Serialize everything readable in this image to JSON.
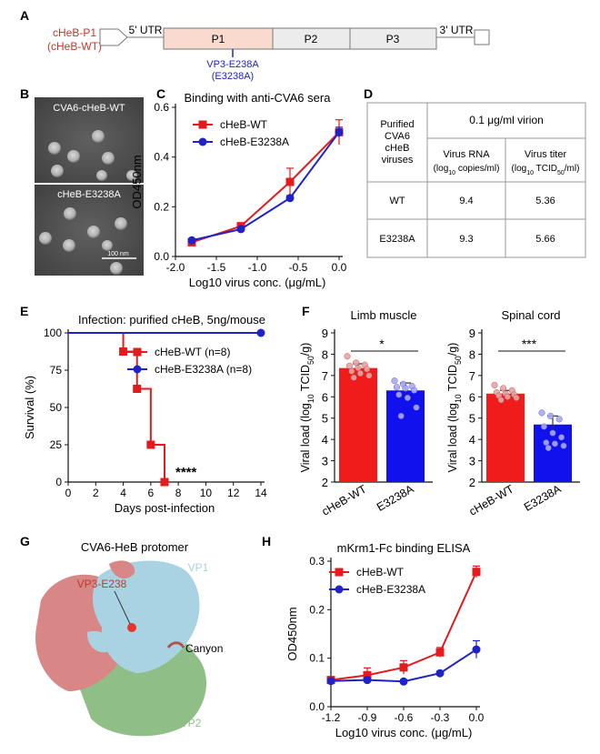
{
  "panels": {
    "A": {
      "letter": "A",
      "construct_line1": "cHeB-P1",
      "construct_line2": "(cHeB-WT)",
      "utr5": "5' UTR",
      "utr3": "3' UTR",
      "regions": [
        "P1",
        "P2",
        "P3"
      ],
      "mutation_line1": "VP3-E238A",
      "mutation_line2": "(E3238A)"
    },
    "B": {
      "letter": "B",
      "top_label": "CVA6-cHeB-WT",
      "bottom_label": "cHeB-E3238A",
      "scale_bar": "100 nm"
    },
    "C": {
      "letter": "C"
    },
    "D": {
      "letter": "D",
      "row_header_lines": [
        "Purified",
        "CVA6",
        "cHeB",
        "viruses"
      ],
      "span_header": "0.1 μg/ml virion",
      "col1_line1": "Virus RNA",
      "col1_line2": "(log10 copies/ml)",
      "col2_line1": "Virus titer",
      "col2_line2": "(log10 TCID50/ml)",
      "rows": [
        {
          "name": "WT",
          "rna": "9.4",
          "titer": "5.36"
        },
        {
          "name": "E3238A",
          "rna": "9.3",
          "titer": "5.66"
        }
      ]
    },
    "E": {
      "letter": "E",
      "stars": "****"
    },
    "F": {
      "letter": "F"
    },
    "G": {
      "letter": "G",
      "title": "CVA6-HeB protomer",
      "labels": {
        "vp1": "VP1",
        "vp2": "VP2",
        "vp3": "VP3",
        "mutation": "VP3-E238",
        "canyon": "Canyon"
      },
      "colors": {
        "vp1": "#a9d3e3",
        "vp2": "#8fbf86",
        "vp3": "#d98686",
        "mutation": "#e8352b"
      }
    },
    "H": {
      "letter": "H"
    }
  },
  "chart_data": [
    {
      "id": "C",
      "type": "line",
      "title": "Binding with anti-CVA6 sera",
      "xlabel": "Log10 virus conc. (μg/mL)",
      "ylabel": "OD450nm",
      "xlim": [
        -2.0,
        0.0
      ],
      "ylim": [
        0.0,
        0.6
      ],
      "xticks": [
        -2.0,
        -1.5,
        -1.0,
        -0.5,
        0.0
      ],
      "yticks": [
        0.0,
        0.2,
        0.4,
        0.6
      ],
      "legend": "top-left",
      "series": [
        {
          "name": "cHeB-WT",
          "color": "#e41a1c",
          "marker": "square",
          "x": [
            -1.8,
            -1.2,
            -0.6,
            0.0
          ],
          "y": [
            0.057,
            0.122,
            0.3,
            0.5
          ],
          "err": [
            0.006,
            0.008,
            0.055,
            0.05
          ]
        },
        {
          "name": "cHeB-E3238A",
          "color": "#1f22c9",
          "marker": "circle",
          "x": [
            -1.8,
            -1.2,
            -0.6,
            0.0
          ],
          "y": [
            0.065,
            0.11,
            0.235,
            0.5
          ],
          "err": [
            0.005,
            0.006,
            0.01,
            0.02
          ]
        }
      ]
    },
    {
      "id": "E",
      "type": "line",
      "title": "Infection: purified cHeB, 5ng/mouse",
      "xlabel": "Days post-infection",
      "ylabel": "Survival (%)",
      "xlim": [
        0,
        14
      ],
      "ylim": [
        0,
        100
      ],
      "xticks": [
        0,
        2,
        4,
        6,
        8,
        10,
        12,
        14
      ],
      "yticks": [
        0,
        25,
        50,
        75,
        100
      ],
      "legend": "center-right",
      "series": [
        {
          "name": "cHeB-WT (n=8)",
          "color": "#e41a1c",
          "marker": "square",
          "step": true,
          "x": [
            0,
            4,
            5,
            6,
            7
          ],
          "y": [
            100,
            87.5,
            62.5,
            25,
            0
          ]
        },
        {
          "name": "cHeB-E3238A (n=8)",
          "color": "#1f22c9",
          "marker": "circle",
          "step": true,
          "x": [
            0,
            7,
            14
          ],
          "y": [
            100,
            100,
            100
          ]
        }
      ]
    },
    {
      "id": "F1",
      "type": "bar",
      "title": "Limb muscle",
      "ylabel": "Viral load (log10 TCID50/g)",
      "ylim": [
        2,
        9
      ],
      "yticks": [
        2,
        3,
        4,
        5,
        6,
        7,
        8,
        9
      ],
      "categories": [
        "cHeB-WT",
        "E3238A"
      ],
      "values": [
        7.35,
        6.3
      ],
      "err": [
        0.2,
        0.35
      ],
      "colors": [
        "#f01c1c",
        "#1111ee"
      ],
      "significance": "*",
      "points": [
        [
          7.9,
          7.6,
          7.5,
          7.45,
          7.35,
          7.3,
          7.2,
          7.1,
          7.0,
          6.9
        ],
        [
          6.75,
          6.6,
          6.5,
          6.45,
          6.4,
          6.3,
          6.1,
          5.95,
          5.5,
          5.1
        ]
      ]
    },
    {
      "id": "F2",
      "type": "bar",
      "title": "Spinal cord",
      "ylabel": "Viral load (log10 TCID50/g)",
      "ylim": [
        2,
        9
      ],
      "yticks": [
        2,
        3,
        4,
        5,
        6,
        7,
        8,
        9
      ],
      "categories": [
        "cHeB-WT",
        "E3238A"
      ],
      "values": [
        6.15,
        4.7
      ],
      "err": [
        0.15,
        0.4
      ],
      "colors": [
        "#f01c1c",
        "#1111ee"
      ],
      "significance": "***",
      "points": [
        [
          6.55,
          6.4,
          6.3,
          6.2,
          6.15,
          6.1,
          6.05,
          6.0,
          5.95,
          5.85
        ],
        [
          5.25,
          5.1,
          4.95,
          4.6,
          4.3,
          4.1,
          3.85,
          3.8,
          3.7,
          3.6
        ]
      ]
    },
    {
      "id": "H",
      "type": "line",
      "title": "mKrm1-Fc binding ELISA",
      "xlabel": "Log10 virus conc. (μg/mL)",
      "ylabel": "OD450nm",
      "xlim": [
        -1.2,
        0.0
      ],
      "ylim": [
        0.0,
        0.3
      ],
      "xticks": [
        -1.2,
        -0.9,
        -0.6,
        -0.3,
        0.0
      ],
      "yticks": [
        0.0,
        0.1,
        0.2,
        0.3
      ],
      "legend": "top-left",
      "series": [
        {
          "name": "cHeB-WT",
          "color": "#e41a1c",
          "marker": "square",
          "x": [
            -1.2,
            -0.9,
            -0.6,
            -0.3,
            0.0
          ],
          "y": [
            0.055,
            0.065,
            0.081,
            0.112,
            0.278
          ],
          "err": [
            0.004,
            0.015,
            0.014,
            0.01,
            0.012
          ]
        },
        {
          "name": "cHeB-E3238A",
          "color": "#1f22c9",
          "marker": "circle",
          "x": [
            -1.2,
            -0.9,
            -0.6,
            -0.3,
            0.0
          ],
          "y": [
            0.053,
            0.055,
            0.052,
            0.069,
            0.118
          ],
          "err": [
            0.003,
            0.004,
            0.003,
            0.004,
            0.018
          ]
        }
      ]
    }
  ]
}
